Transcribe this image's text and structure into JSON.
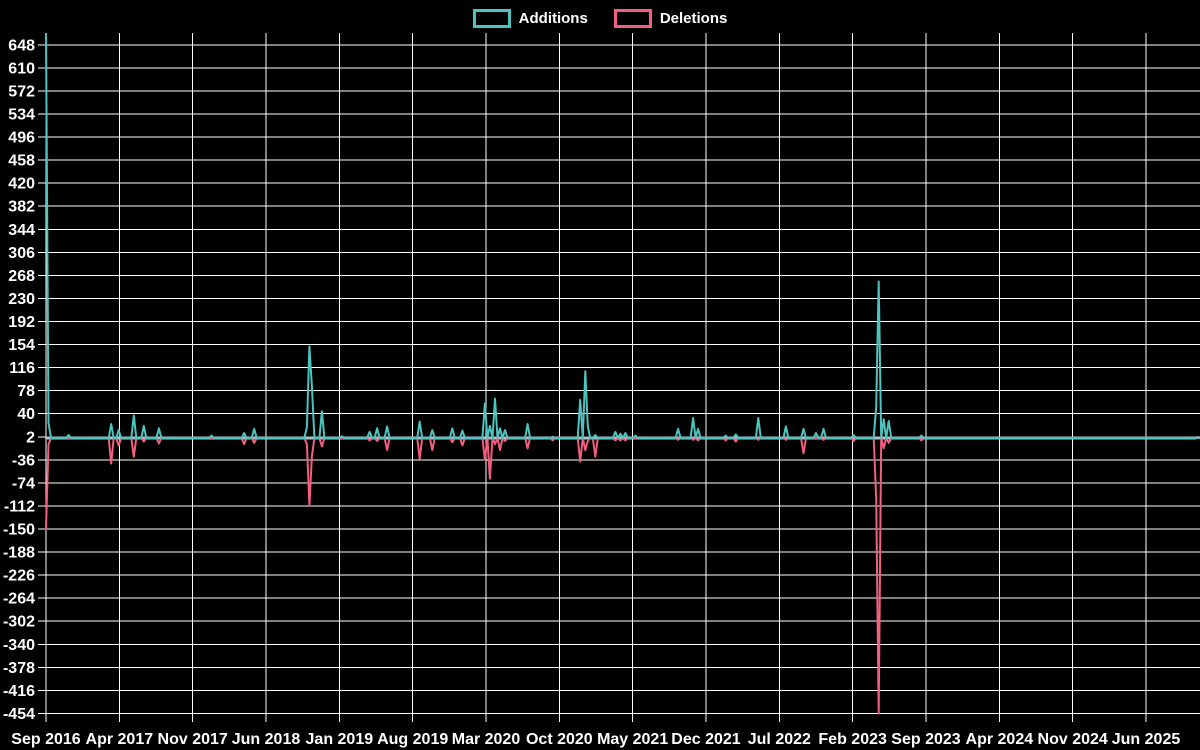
{
  "legend": {
    "items": [
      {
        "label": "Additions",
        "color": "#4cc4bf"
      },
      {
        "label": "Deletions",
        "color": "#f25f7f"
      }
    ]
  },
  "colors": {
    "background": "#000000",
    "grid": "#ffffff",
    "text": "#ffffff",
    "additions": "#4cc4bf",
    "deletions": "#f25f7f",
    "zero_baseline": "#a9c2cb"
  },
  "chart_data": {
    "type": "line",
    "title": "",
    "xlabel": "",
    "ylabel": "",
    "legend_position": "top-center",
    "grid": true,
    "y_ticks": [
      648,
      610,
      572,
      534,
      496,
      458,
      420,
      382,
      344,
      306,
      268,
      230,
      192,
      154,
      116,
      78,
      40,
      2,
      -36,
      -74,
      -112,
      -150,
      -188,
      -226,
      -264,
      -302,
      -340,
      -378,
      -416,
      -454
    ],
    "y_tick_step": 38,
    "ylim": [
      -454,
      667
    ],
    "x_tick_labels": [
      "Sep 2016",
      "Apr 2017",
      "Nov 2017",
      "Jun 2018",
      "Jan 2019",
      "Aug 2019",
      "Mar 2020",
      "Oct 2020",
      "May 2021",
      "Dec 2021",
      "Jul 2022",
      "Feb 2023",
      "Sep 2023",
      "Apr 2024",
      "Nov 2024",
      "Jun 2025"
    ],
    "x_unit": "weeks since Sep 2016",
    "weeks_total": 477,
    "baseline_value": 0,
    "series": [
      {
        "name": "Additions",
        "color": "#4cc4bf",
        "points": [
          [
            0,
            667
          ],
          [
            1,
            25
          ],
          [
            9,
            5
          ],
          [
            26,
            23
          ],
          [
            29,
            13
          ],
          [
            35,
            37
          ],
          [
            39,
            20
          ],
          [
            45,
            16
          ],
          [
            66,
            4
          ],
          [
            79,
            8
          ],
          [
            83,
            15
          ],
          [
            104,
            18
          ],
          [
            105,
            151
          ],
          [
            106,
            85
          ],
          [
            110,
            44
          ],
          [
            118,
            3
          ],
          [
            129,
            10
          ],
          [
            132,
            16
          ],
          [
            136,
            19
          ],
          [
            149,
            27
          ],
          [
            154,
            13
          ],
          [
            162,
            16
          ],
          [
            166,
            12
          ],
          [
            175,
            57
          ],
          [
            177,
            20
          ],
          [
            179,
            65
          ],
          [
            181,
            16
          ],
          [
            183,
            13
          ],
          [
            192,
            23
          ],
          [
            202,
            2
          ],
          [
            213,
            63
          ],
          [
            215,
            110
          ],
          [
            216,
            19
          ],
          [
            219,
            5
          ],
          [
            227,
            10
          ],
          [
            229,
            7
          ],
          [
            231,
            8
          ],
          [
            235,
            4
          ],
          [
            252,
            15
          ],
          [
            258,
            33
          ],
          [
            260,
            15
          ],
          [
            271,
            4
          ],
          [
            275,
            6
          ],
          [
            284,
            33
          ],
          [
            295,
            19
          ],
          [
            302,
            15
          ],
          [
            307,
            8
          ],
          [
            310,
            15
          ],
          [
            322,
            5
          ],
          [
            331,
            52
          ],
          [
            332,
            258
          ],
          [
            334,
            31
          ],
          [
            336,
            28
          ],
          [
            349,
            4
          ]
        ]
      },
      {
        "name": "Deletions",
        "color": "#f25f7f",
        "points": [
          [
            0,
            -150
          ],
          [
            1,
            -10
          ],
          [
            26,
            -42
          ],
          [
            29,
            -12
          ],
          [
            35,
            -31
          ],
          [
            39,
            -6
          ],
          [
            45,
            -9
          ],
          [
            79,
            -10
          ],
          [
            83,
            -8
          ],
          [
            104,
            -10
          ],
          [
            105,
            -112
          ],
          [
            106,
            -30
          ],
          [
            110,
            -14
          ],
          [
            129,
            -4
          ],
          [
            132,
            -5
          ],
          [
            136,
            -20
          ],
          [
            149,
            -34
          ],
          [
            154,
            -20
          ],
          [
            162,
            -7
          ],
          [
            166,
            -12
          ],
          [
            175,
            -36
          ],
          [
            177,
            -67
          ],
          [
            179,
            -10
          ],
          [
            181,
            -20
          ],
          [
            183,
            -5
          ],
          [
            192,
            -17
          ],
          [
            202,
            -4
          ],
          [
            213,
            -39
          ],
          [
            215,
            -20
          ],
          [
            216,
            -5
          ],
          [
            219,
            -31
          ],
          [
            227,
            -4
          ],
          [
            229,
            -4
          ],
          [
            231,
            -4
          ],
          [
            252,
            -3
          ],
          [
            258,
            -3
          ],
          [
            260,
            -4
          ],
          [
            271,
            -4
          ],
          [
            275,
            -6
          ],
          [
            284,
            -3
          ],
          [
            295,
            -3
          ],
          [
            302,
            -25
          ],
          [
            310,
            -3
          ],
          [
            322,
            -5
          ],
          [
            331,
            -100
          ],
          [
            332,
            -454
          ],
          [
            334,
            -17
          ],
          [
            336,
            -8
          ],
          [
            349,
            -4
          ]
        ]
      }
    ]
  }
}
